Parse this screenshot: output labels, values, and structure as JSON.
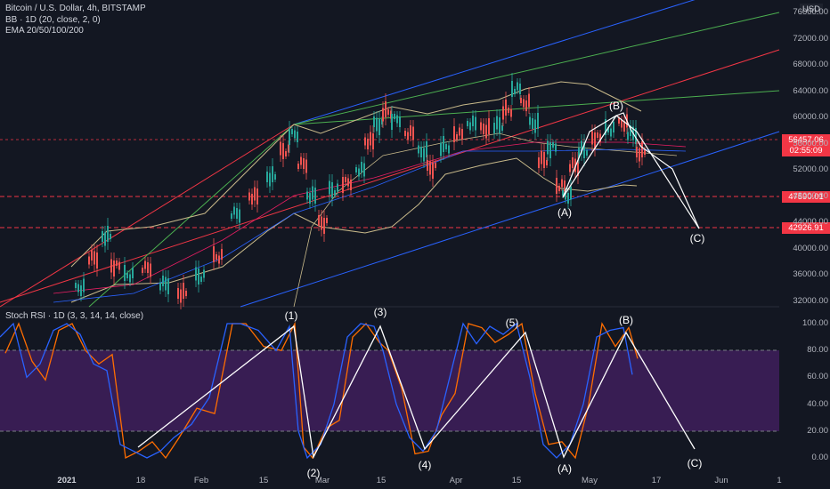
{
  "header": {
    "symbol_line": "Bitcoin / U.S. Dollar, 4h, BITSTAMP",
    "bb_line": "BB · 1D (20, close, 2, 0)",
    "ema_line": "EMA 20/50/100/200",
    "currency": "USD"
  },
  "price_axis": [
    "76000.00",
    "72000.00",
    "68000.00",
    "64000.00",
    "60000.00",
    "56000.00",
    "52000.00",
    "48000.00",
    "44000.00",
    "40000.00",
    "36000.00",
    "32000.00"
  ],
  "price_tags": {
    "current": "56457.06",
    "countdown": "02:55:09",
    "level_1": "47590.01",
    "level_2": "42926.91"
  },
  "rsi": {
    "title": "Stoch RSI · 1D (3, 3, 14, 14, close)",
    "axis": [
      "100.00",
      "80.00",
      "60.00",
      "40.00",
      "20.00",
      "0.00"
    ]
  },
  "time_axis": [
    "2021",
    "18",
    "Feb",
    "15",
    "Mar",
    "15",
    "Apr",
    "15",
    "May",
    "17",
    "Jun",
    "1"
  ],
  "waves_price": [
    "(B)",
    "(A)",
    "(C)"
  ],
  "waves_rsi": [
    "(1)",
    "(2)",
    "(3)",
    "(4)",
    "(5)",
    "(A)",
    "(B)",
    "(C)"
  ],
  "colors": {
    "background": "#131722",
    "bb_band": "#c8b98a",
    "channel_blue": "#2962ff",
    "channel_green": "#4caf50",
    "channel_red": "#f23645",
    "rsi_band_fill": "#3f1f5c",
    "stoch_k": "#2962ff",
    "stoch_d": "#ff6d00",
    "current_tag": "#f23645",
    "level_tag": "#f23645",
    "wave_lines": "#ffffff"
  }
}
